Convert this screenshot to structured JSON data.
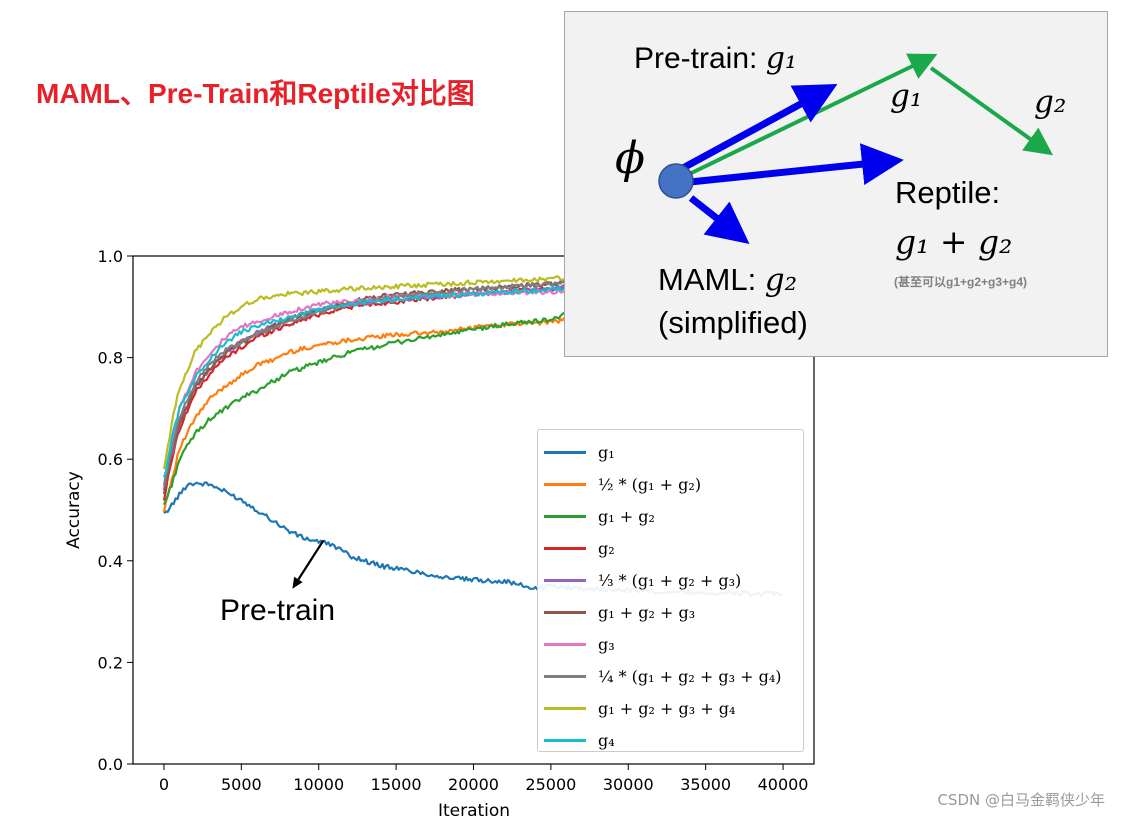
{
  "title": "MAML、Pre-Train和Reptile对比图",
  "watermark": "CSDN @白马金羁侠少年",
  "diagram": {
    "phi": "ϕ",
    "pretrain_label": "Pre-train: ",
    "pretrain_sym": "g₁",
    "g1_label": "g₁",
    "g2_label": "g₂",
    "reptile_label": "Reptile:",
    "reptile_formula": "g₁ + g₂",
    "reptile_note": "(甚至可以g1+g2+g3+g4)",
    "maml_label": "MAML: ",
    "maml_sym": "g₂",
    "maml_sub": "(simplified)",
    "colors": {
      "blue": "#0000ee",
      "green": "#1aa84b",
      "node": "#4472c4",
      "node_border": "#2f528f"
    }
  },
  "chart_data": {
    "type": "line",
    "xlabel": "Iteration",
    "ylabel": "Accuracy",
    "xlim": [
      -2000,
      42000
    ],
    "ylim": [
      0.0,
      1.0
    ],
    "xticks": [
      0,
      5000,
      10000,
      15000,
      20000,
      25000,
      30000,
      35000,
      40000
    ],
    "yticks": [
      0.0,
      0.2,
      0.4,
      0.6,
      0.8,
      1.0
    ],
    "annotation": {
      "text": "Pre-train",
      "arrow_to": [
        8300,
        0.345
      ],
      "arrow_from": [
        10300,
        0.44
      ]
    },
    "series": [
      {
        "name": "g1",
        "label": "g₁",
        "color": "#1f77b4",
        "x": [
          0,
          500,
          1000,
          1500,
          2000,
          3000,
          4000,
          5000,
          6000,
          7000,
          8000,
          9000,
          10000,
          11000,
          12000,
          14000,
          16000,
          18000,
          20000,
          22000,
          24000,
          25000,
          26000,
          28000,
          30000,
          32000,
          34000,
          36000,
          38000,
          40000
        ],
        "y": [
          0.49,
          0.51,
          0.53,
          0.55,
          0.553,
          0.55,
          0.535,
          0.52,
          0.5,
          0.48,
          0.46,
          0.445,
          0.438,
          0.43,
          0.41,
          0.39,
          0.38,
          0.368,
          0.362,
          0.36,
          0.345,
          0.35,
          0.348,
          0.344,
          0.342,
          0.34,
          0.338,
          0.336,
          0.335,
          0.334
        ]
      },
      {
        "name": "half_g1_g2",
        "label": "½ * (g₁ + g₂)",
        "color": "#ff7f0e",
        "x": [
          0,
          500,
          1000,
          2000,
          3000,
          4000,
          5000,
          6000,
          7000,
          8000,
          10000,
          12000,
          15000,
          18000,
          20000,
          22000,
          25000,
          26000
        ],
        "y": [
          0.5,
          0.56,
          0.62,
          0.68,
          0.72,
          0.745,
          0.765,
          0.785,
          0.795,
          0.81,
          0.825,
          0.835,
          0.845,
          0.85,
          0.86,
          0.865,
          0.87,
          0.875
        ]
      },
      {
        "name": "g1_g2",
        "label": "g₁ + g₂",
        "color": "#2ca02c",
        "x": [
          0,
          500,
          1000,
          2000,
          3000,
          4000,
          5000,
          6000,
          8000,
          10000,
          12000,
          15000,
          18000,
          20000,
          22000,
          25000,
          26000
        ],
        "y": [
          0.51,
          0.55,
          0.6,
          0.65,
          0.68,
          0.7,
          0.72,
          0.735,
          0.77,
          0.79,
          0.81,
          0.83,
          0.845,
          0.855,
          0.865,
          0.875,
          0.885
        ]
      },
      {
        "name": "g2",
        "label": "g₂",
        "color": "#d62728",
        "x": [
          0,
          500,
          1000,
          2000,
          3000,
          4000,
          5000,
          6000,
          8000,
          10000,
          12000,
          15000,
          20000,
          25000,
          26000
        ],
        "y": [
          0.52,
          0.6,
          0.66,
          0.73,
          0.77,
          0.8,
          0.82,
          0.84,
          0.865,
          0.885,
          0.9,
          0.91,
          0.925,
          0.935,
          0.94
        ]
      },
      {
        "name": "third_g1_g2_g3",
        "label": "⅓ * (g₁ + g₂ + g₃)",
        "color": "#9467bd",
        "x": [
          0,
          500,
          1000,
          2000,
          3000,
          4000,
          5000,
          6000,
          8000,
          10000,
          12000,
          15000,
          20000,
          25000,
          26000
        ],
        "y": [
          0.54,
          0.61,
          0.67,
          0.74,
          0.78,
          0.81,
          0.83,
          0.85,
          0.875,
          0.895,
          0.905,
          0.915,
          0.925,
          0.935,
          0.94
        ]
      },
      {
        "name": "g1_g2_g3",
        "label": "g₁ + g₂ + g₃",
        "color": "#8c564b",
        "x": [
          0,
          500,
          1000,
          2000,
          3000,
          4000,
          5000,
          6000,
          8000,
          10000,
          12000,
          15000,
          20000,
          25000,
          26000
        ],
        "y": [
          0.53,
          0.61,
          0.67,
          0.74,
          0.78,
          0.81,
          0.83,
          0.845,
          0.875,
          0.895,
          0.91,
          0.925,
          0.935,
          0.945,
          0.948
        ]
      },
      {
        "name": "g3",
        "label": "g₃",
        "color": "#e377c2",
        "x": [
          0,
          500,
          1000,
          2000,
          3000,
          4000,
          5000,
          6000,
          8000,
          10000,
          12000,
          15000,
          20000,
          25000,
          26000
        ],
        "y": [
          0.55,
          0.63,
          0.7,
          0.77,
          0.81,
          0.84,
          0.86,
          0.87,
          0.89,
          0.905,
          0.91,
          0.92,
          0.925,
          0.93,
          0.932
        ]
      },
      {
        "name": "quarter_g1_g2_g3_g4",
        "label": "¼ * (g₁ + g₂ + g₃ + g₄)",
        "color": "#7f7f7f",
        "x": [
          0,
          500,
          1000,
          2000,
          3000,
          4000,
          5000,
          6000,
          8000,
          10000,
          12000,
          15000,
          20000,
          25000,
          26000
        ],
        "y": [
          0.55,
          0.62,
          0.68,
          0.75,
          0.79,
          0.815,
          0.83,
          0.845,
          0.87,
          0.89,
          0.905,
          0.92,
          0.935,
          0.945,
          0.948
        ]
      },
      {
        "name": "g1_g2_g3_g4",
        "label": "g₁ + g₂ + g₃ + g₄",
        "color": "#bcbd22",
        "x": [
          0,
          500,
          1000,
          2000,
          3000,
          4000,
          5000,
          6000,
          8000,
          10000,
          12000,
          15000,
          20000,
          25000,
          26000
        ],
        "y": [
          0.58,
          0.67,
          0.74,
          0.81,
          0.85,
          0.88,
          0.9,
          0.915,
          0.925,
          0.93,
          0.935,
          0.94,
          0.948,
          0.955,
          0.958
        ]
      },
      {
        "name": "g4",
        "label": "g₄",
        "color": "#17becf",
        "x": [
          0,
          500,
          1000,
          2000,
          3000,
          4000,
          5000,
          6000,
          8000,
          10000,
          12000,
          15000,
          20000,
          25000,
          26000
        ],
        "y": [
          0.56,
          0.64,
          0.7,
          0.76,
          0.8,
          0.83,
          0.85,
          0.862,
          0.878,
          0.895,
          0.905,
          0.915,
          0.925,
          0.935,
          0.938
        ]
      }
    ]
  }
}
